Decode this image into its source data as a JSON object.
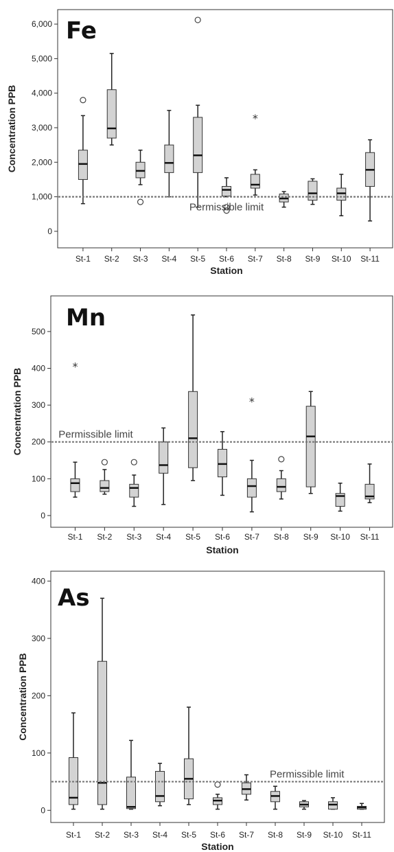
{
  "chart_data": [
    {
      "type": "box",
      "title": "Fe",
      "xlabel": "Station",
      "ylabel": "Concentration PPB",
      "ylim": [
        -300,
        6300
      ],
      "yticks": [
        0,
        1000,
        2000,
        3000,
        4000,
        5000,
        6000
      ],
      "ytick_labels": [
        "0",
        "1,000",
        "2,000",
        "3,000",
        "4,000",
        "5,000",
        "6,000"
      ],
      "categories": [
        "St-1",
        "St-2",
        "St-3",
        "St-4",
        "St-5",
        "St-6",
        "St-7",
        "St-8",
        "St-9",
        "St-10",
        "St-11"
      ],
      "limit": {
        "value": 1000,
        "label": "Permissible limit",
        "label_x": 5.5
      },
      "boxes": [
        {
          "min": 800,
          "q1": 1500,
          "median": 1950,
          "q3": 2350,
          "max": 3350,
          "outliers": [
            3800
          ],
          "extremes": []
        },
        {
          "min": 2500,
          "q1": 2700,
          "median": 2980,
          "q3": 4100,
          "max": 5150,
          "outliers": [],
          "extremes": []
        },
        {
          "min": 1350,
          "q1": 1550,
          "median": 1750,
          "q3": 2000,
          "max": 2350,
          "outliers": [
            850
          ],
          "extremes": []
        },
        {
          "min": 1000,
          "q1": 1700,
          "median": 1980,
          "q3": 2500,
          "max": 3500,
          "outliers": [],
          "extremes": []
        },
        {
          "min": 700,
          "q1": 1700,
          "median": 2200,
          "q3": 3300,
          "max": 3650,
          "outliers": [
            6120
          ],
          "extremes": []
        },
        {
          "min": 1000,
          "q1": 1020,
          "median": 1200,
          "q3": 1300,
          "max": 1550,
          "outliers": [
            700,
            600
          ],
          "extremes": []
        },
        {
          "min": 1050,
          "q1": 1250,
          "median": 1350,
          "q3": 1650,
          "max": 1780,
          "outliers": [],
          "extremes": [
            3300
          ]
        },
        {
          "min": 700,
          "q1": 850,
          "median": 950,
          "q3": 1080,
          "max": 1150,
          "outliers": [],
          "extremes": []
        },
        {
          "min": 780,
          "q1": 900,
          "median": 1100,
          "q3": 1450,
          "max": 1520,
          "outliers": [],
          "extremes": []
        },
        {
          "min": 450,
          "q1": 900,
          "median": 1100,
          "q3": 1250,
          "max": 1650,
          "outliers": [],
          "extremes": []
        },
        {
          "min": 300,
          "q1": 1300,
          "median": 1780,
          "q3": 2280,
          "max": 2650,
          "outliers": [],
          "extremes": []
        }
      ]
    },
    {
      "type": "box",
      "title": "Mn",
      "xlabel": "Station",
      "ylabel": "Concentration PPB",
      "ylim": [
        -30,
        580
      ],
      "yticks": [
        0,
        100,
        200,
        300,
        400,
        500
      ],
      "ytick_labels": [
        "0",
        "100",
        "200",
        "300",
        "400",
        "500"
      ],
      "categories": [
        "St-1",
        "St-2",
        "St-3",
        "St-4",
        "St-5",
        "St-6",
        "St-7",
        "St-8",
        "St-9",
        "St-10",
        "St-11"
      ],
      "limit": {
        "value": 200,
        "label": "Permissible limit",
        "label_x": 1.2
      },
      "boxes": [
        {
          "min": 50,
          "q1": 65,
          "median": 88,
          "q3": 100,
          "max": 145,
          "outliers": [],
          "extremes": [
            407
          ]
        },
        {
          "min": 58,
          "q1": 65,
          "median": 75,
          "q3": 95,
          "max": 125,
          "outliers": [
            145
          ],
          "extremes": []
        },
        {
          "min": 25,
          "q1": 50,
          "median": 75,
          "q3": 85,
          "max": 110,
          "outliers": [
            145
          ],
          "extremes": []
        },
        {
          "min": 30,
          "q1": 115,
          "median": 137,
          "q3": 200,
          "max": 238,
          "outliers": [],
          "extremes": []
        },
        {
          "min": 95,
          "q1": 130,
          "median": 210,
          "q3": 337,
          "max": 545,
          "outliers": [],
          "extremes": []
        },
        {
          "min": 55,
          "q1": 105,
          "median": 140,
          "q3": 180,
          "max": 228,
          "outliers": [],
          "extremes": []
        },
        {
          "min": 10,
          "q1": 50,
          "median": 80,
          "q3": 100,
          "max": 150,
          "outliers": [],
          "extremes": [
            312
          ]
        },
        {
          "min": 45,
          "q1": 65,
          "median": 78,
          "q3": 100,
          "max": 122,
          "outliers": [
            153
          ],
          "extremes": []
        },
        {
          "min": 60,
          "q1": 78,
          "median": 215,
          "q3": 297,
          "max": 337,
          "outliers": [],
          "extremes": []
        },
        {
          "min": 12,
          "q1": 25,
          "median": 53,
          "q3": 60,
          "max": 88,
          "outliers": [],
          "extremes": []
        },
        {
          "min": 35,
          "q1": 45,
          "median": 52,
          "q3": 85,
          "max": 140,
          "outliers": [],
          "extremes": []
        }
      ]
    },
    {
      "type": "box",
      "title": "As",
      "xlabel": "Station",
      "ylabel": "Concentration PPB",
      "ylim": [
        -20,
        410
      ],
      "yticks": [
        0,
        100,
        200,
        300,
        400
      ],
      "ytick_labels": [
        "0",
        "100",
        "200",
        "300",
        "400"
      ],
      "categories": [
        "St-1",
        "St-2",
        "St-3",
        "St-4",
        "St-5",
        "St-6",
        "St-7",
        "St-8",
        "St-9",
        "St-10",
        "St-11"
      ],
      "limit": {
        "value": 50,
        "label": "Permissible limit",
        "label_x": 8.6
      },
      "boxes": [
        {
          "min": 2,
          "q1": 10,
          "median": 22,
          "q3": 92,
          "max": 170,
          "outliers": [],
          "extremes": []
        },
        {
          "min": 2,
          "q1": 10,
          "median": 48,
          "q3": 260,
          "max": 370,
          "outliers": [],
          "extremes": []
        },
        {
          "min": 2,
          "q1": 3,
          "median": 6,
          "q3": 58,
          "max": 122,
          "outliers": [],
          "extremes": []
        },
        {
          "min": 8,
          "q1": 15,
          "median": 25,
          "q3": 68,
          "max": 82,
          "outliers": [],
          "extremes": []
        },
        {
          "min": 10,
          "q1": 20,
          "median": 55,
          "q3": 90,
          "max": 180,
          "outliers": [],
          "extremes": []
        },
        {
          "min": 2,
          "q1": 10,
          "median": 17,
          "q3": 22,
          "max": 28,
          "outliers": [
            45
          ],
          "extremes": []
        },
        {
          "min": 18,
          "q1": 28,
          "median": 37,
          "q3": 48,
          "max": 62,
          "outliers": [],
          "extremes": []
        },
        {
          "min": 2,
          "q1": 15,
          "median": 25,
          "q3": 33,
          "max": 42,
          "outliers": [],
          "extremes": []
        },
        {
          "min": 2,
          "q1": 6,
          "median": 10,
          "q3": 15,
          "max": 17,
          "outliers": [],
          "extremes": []
        },
        {
          "min": 2,
          "q1": 2,
          "median": 10,
          "q3": 15,
          "max": 22,
          "outliers": [],
          "extremes": []
        },
        {
          "min": 2,
          "q1": 2,
          "median": 5,
          "q3": 7,
          "max": 12,
          "outliers": [],
          "extremes": []
        }
      ]
    }
  ]
}
